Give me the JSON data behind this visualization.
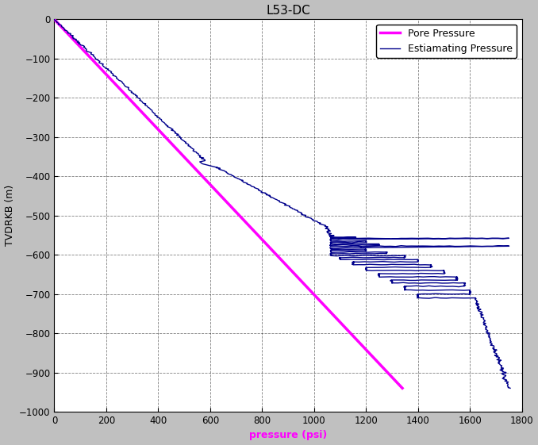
{
  "title": "L53-DC",
  "xlabel": "pressure (psi)",
  "ylabel": "TVDRKB (m)",
  "xlim": [
    0,
    1800
  ],
  "ylim": [
    -1000,
    0
  ],
  "xticks": [
    0,
    200,
    400,
    600,
    800,
    1000,
    1200,
    1400,
    1600,
    1800
  ],
  "yticks": [
    0,
    -100,
    -200,
    -300,
    -400,
    -500,
    -600,
    -700,
    -800,
    -900,
    -1000
  ],
  "background_color": "#c0c0c0",
  "plot_bg_color": "#ffffff",
  "grid_color": "#000000",
  "grid_style": "--",
  "grid_alpha": 0.5,
  "pore_pressure": {
    "label": "Pore Pressure",
    "color": "#ff00ff",
    "linewidth": 2.5,
    "x": [
      0,
      1340
    ],
    "y": [
      0,
      -940
    ]
  },
  "estimating_pressure": {
    "label": "Estiamating Pressure",
    "color": "#00008b",
    "linewidth": 1.0
  },
  "legend_fontsize": 9,
  "title_fontsize": 11,
  "axis_label_fontsize": 9,
  "xlabel_color": "#ff00ff",
  "ylabel_color": "#000000"
}
